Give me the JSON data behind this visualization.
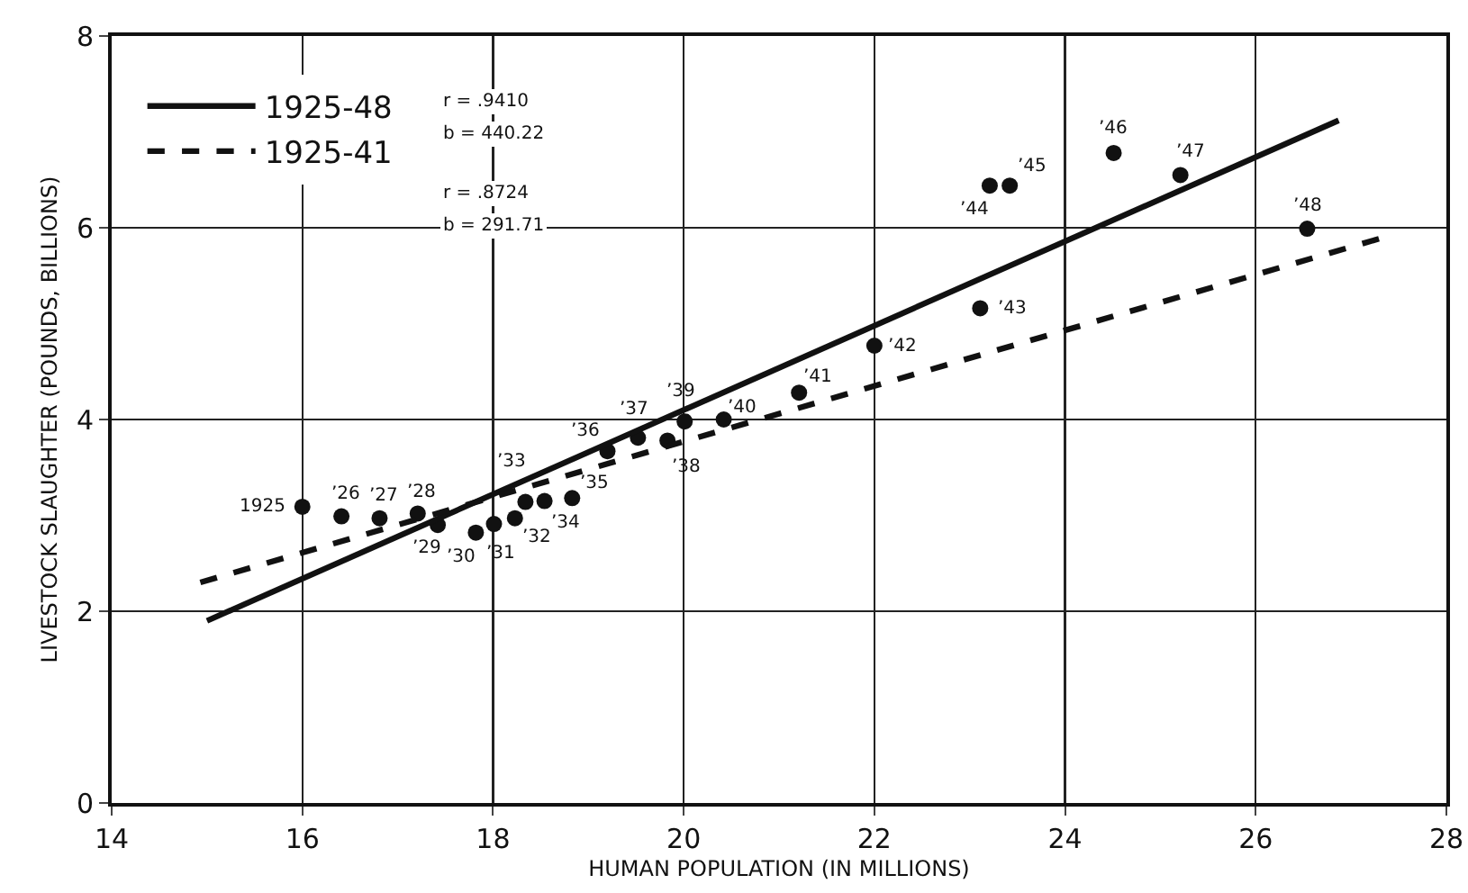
{
  "chart_data": {
    "type": "scatter",
    "xlabel": "HUMAN POPULATION (IN MILLIONS)",
    "ylabel": "LIVESTOCK SLAUGHTER (POUNDS, BILLIONS)",
    "xlim": [
      14,
      28
    ],
    "xticks": [
      14,
      16,
      18,
      20,
      22,
      24,
      26,
      28
    ],
    "ylim": [
      0,
      8
    ],
    "yticks": [
      0,
      2,
      4,
      6,
      8
    ],
    "grid": true,
    "legend": "top left",
    "series": [
      {
        "color": "#111111",
        "marker": "circle",
        "x": [
          16.0,
          16.41,
          16.81,
          17.21,
          17.42,
          17.82,
          18.01,
          18.23,
          18.34,
          18.54,
          18.83,
          19.2,
          19.52,
          19.83,
          20.01,
          20.42,
          21.21,
          22.0,
          23.11,
          23.21,
          23.42,
          24.51,
          25.21,
          26.54
        ],
        "values": [
          3.09,
          2.99,
          2.97,
          3.02,
          2.9,
          2.82,
          2.91,
          2.97,
          3.14,
          3.15,
          3.18,
          3.67,
          3.81,
          3.78,
          3.98,
          4.0,
          4.28,
          4.77,
          5.16,
          6.44,
          6.44,
          6.78,
          6.55,
          5.99
        ]
      },
      {
        "type": "line",
        "name": "1925-48",
        "color": "#111111",
        "line_style": "solid",
        "x": [
          15.0,
          26.87
        ],
        "values": [
          1.9,
          7.12
        ]
      },
      {
        "type": "line",
        "name": "1925-41",
        "color": "#111111",
        "line_style": "dashed",
        "x": [
          14.93,
          27.31
        ],
        "values": [
          2.3,
          5.89
        ]
      }
    ],
    "annotations": [
      {
        "text": "1925",
        "x": 16.0,
        "y": 3.09
      },
      {
        "text": "’26",
        "x": 16.41,
        "y": 2.99
      },
      {
        "text": "’27",
        "x": 16.81,
        "y": 2.97
      },
      {
        "text": "’28",
        "x": 17.21,
        "y": 3.02
      },
      {
        "text": "’29",
        "x": 17.42,
        "y": 2.9
      },
      {
        "text": "’30",
        "x": 17.82,
        "y": 2.82
      },
      {
        "text": "’31",
        "x": 18.01,
        "y": 2.91
      },
      {
        "text": "’32",
        "x": 18.23,
        "y": 2.97
      },
      {
        "text": "’33",
        "x": 18.34,
        "y": 3.14
      },
      {
        "text": "’34",
        "x": 18.54,
        "y": 3.15
      },
      {
        "text": "’35",
        "x": 18.83,
        "y": 3.18
      },
      {
        "text": "’36",
        "x": 19.2,
        "y": 3.67
      },
      {
        "text": "’37",
        "x": 19.52,
        "y": 3.81
      },
      {
        "text": "’38",
        "x": 19.83,
        "y": 3.78
      },
      {
        "text": "’39",
        "x": 20.01,
        "y": 3.98
      },
      {
        "text": "’40",
        "x": 20.42,
        "y": 4.0
      },
      {
        "text": "’41",
        "x": 21.21,
        "y": 4.28
      },
      {
        "text": "’42",
        "x": 22.0,
        "y": 4.77
      },
      {
        "text": "’43",
        "x": 23.11,
        "y": 5.16
      },
      {
        "text": "’44",
        "x": 23.21,
        "y": 6.44
      },
      {
        "text": "’45",
        "x": 23.42,
        "y": 6.44
      },
      {
        "text": "’46",
        "x": 24.51,
        "y": 6.78
      },
      {
        "text": "’47",
        "x": 25.21,
        "y": 6.55
      },
      {
        "text": "’48",
        "x": 26.54,
        "y": 5.99
      },
      "r = .9410",
      "b = 440.22",
      "r = .8724",
      "b = 291.71"
    ]
  }
}
